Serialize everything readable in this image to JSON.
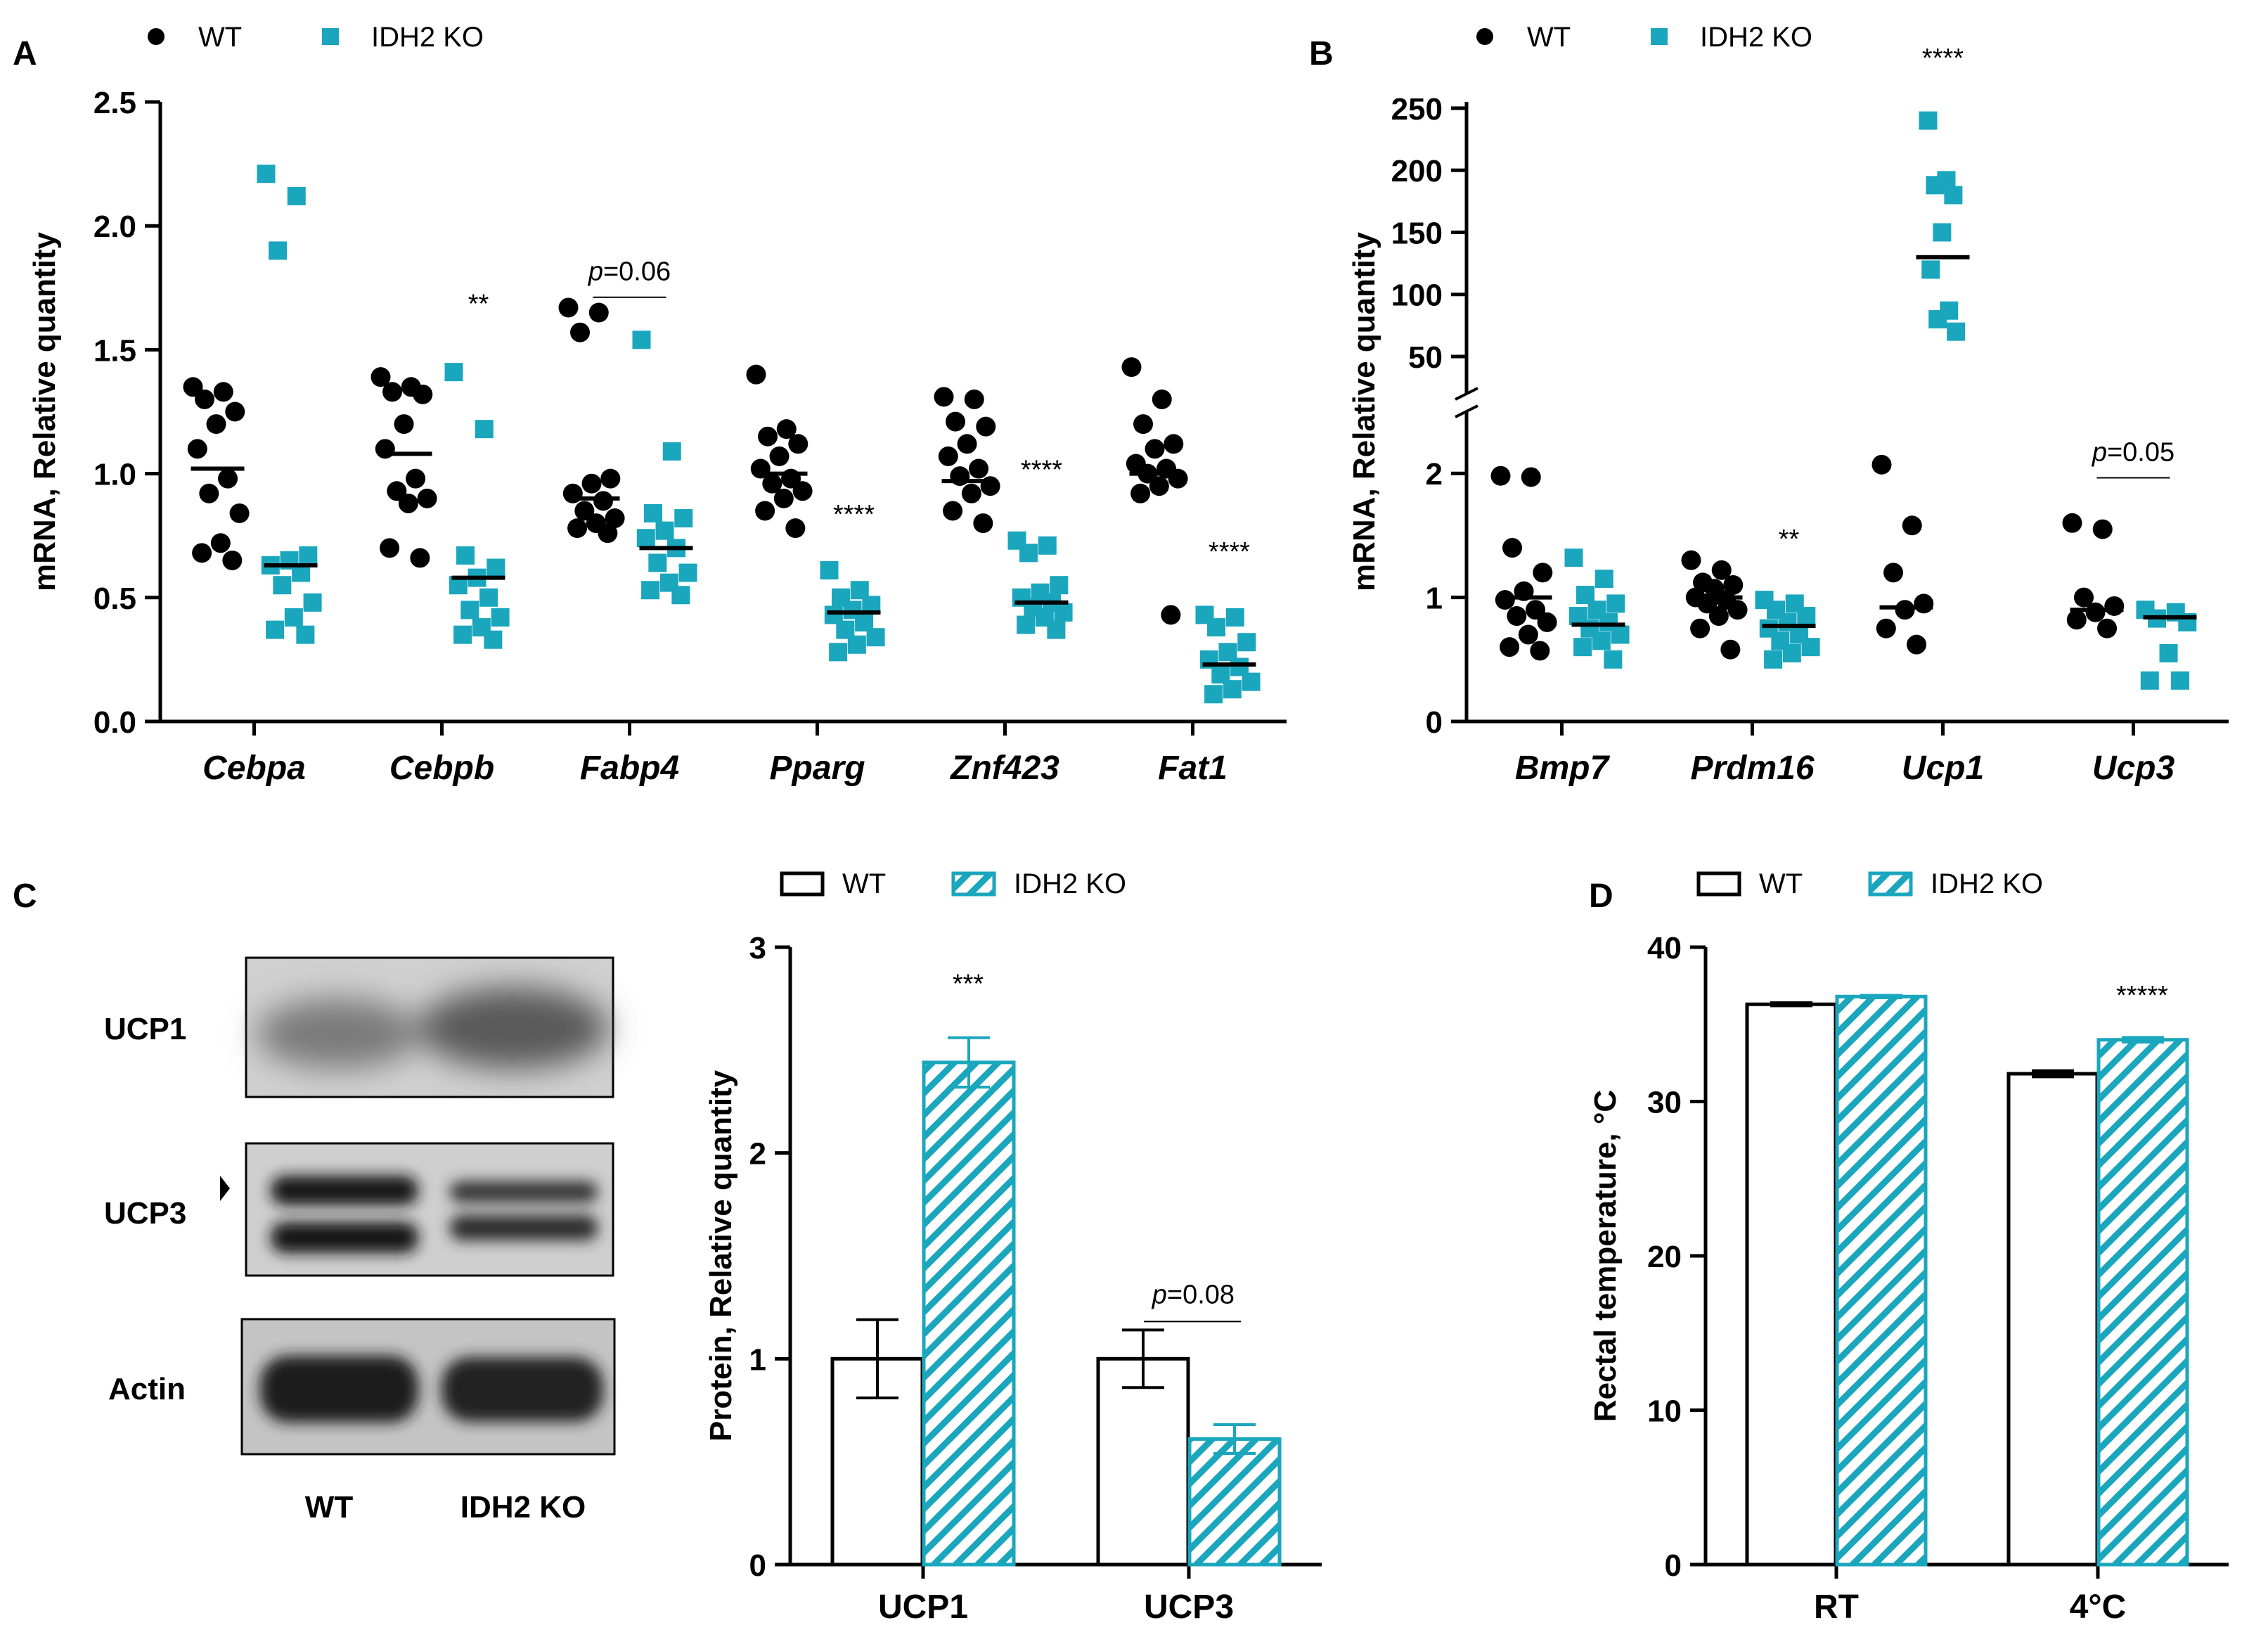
{
  "colors": {
    "wt": "#000000",
    "ko": "#1aa6bd",
    "axis": "#000000",
    "blot_bg": "#c8c8c8"
  },
  "chart_data": [
    {
      "id": "A",
      "panel_label": "A",
      "type": "scatter",
      "ylabel": "mRNA, Relative quantity",
      "ylim": [
        0,
        2.5
      ],
      "yticks": [
        "0.0",
        "0.5",
        "1.0",
        "1.5",
        "2.0",
        "2.5"
      ],
      "legend": [
        "WT",
        "IDH2 KO"
      ],
      "categories": [
        "Cebpa",
        "Cebpb",
        "Fabp4",
        "Pparg",
        "Znf423",
        "Fat1"
      ],
      "series": [
        {
          "name": "WT",
          "marker": "circle",
          "values": [
            [
              1.35,
              1.33,
              1.3,
              1.25,
              1.2,
              1.1,
              0.98,
              0.92,
              0.84,
              0.72,
              0.68,
              0.65
            ],
            [
              1.39,
              1.35,
              1.33,
              1.32,
              1.2,
              1.1,
              0.98,
              0.93,
              0.9,
              0.88,
              0.7,
              0.66
            ],
            [
              1.67,
              1.65,
              1.57,
              0.98,
              0.96,
              0.92,
              0.89,
              0.85,
              0.82,
              0.8,
              0.78,
              0.76
            ],
            [
              1.4,
              1.18,
              1.15,
              1.12,
              1.07,
              1.02,
              0.98,
              0.96,
              0.93,
              0.9,
              0.85,
              0.78
            ],
            [
              1.31,
              1.3,
              1.21,
              1.19,
              1.12,
              1.07,
              1.02,
              0.99,
              0.95,
              0.92,
              0.85,
              0.8
            ],
            [
              1.43,
              1.3,
              1.2,
              1.12,
              1.1,
              1.04,
              1.02,
              1.0,
              0.98,
              0.95,
              0.92,
              0.43
            ]
          ],
          "means": [
            1.02,
            1.08,
            0.9,
            1.0,
            0.97,
            1.0
          ]
        },
        {
          "name": "IDH2 KO",
          "marker": "square",
          "values": [
            [
              2.21,
              2.12,
              1.9,
              0.67,
              0.65,
              0.63,
              0.6,
              0.55,
              0.48,
              0.42,
              0.37,
              0.35
            ],
            [
              1.41,
              1.18,
              0.67,
              0.62,
              0.58,
              0.55,
              0.5,
              0.45,
              0.42,
              0.38,
              0.35,
              0.33
            ],
            [
              1.54,
              1.09,
              0.84,
              0.82,
              0.77,
              0.74,
              0.7,
              0.64,
              0.6,
              0.56,
              0.53,
              0.51
            ],
            [
              0.61,
              0.53,
              0.5,
              0.47,
              0.45,
              0.43,
              0.4,
              0.37,
              0.34,
              0.31,
              0.28
            ],
            [
              0.73,
              0.71,
              0.68,
              0.55,
              0.52,
              0.5,
              0.48,
              0.46,
              0.44,
              0.42,
              0.39,
              0.37
            ],
            [
              0.43,
              0.42,
              0.38,
              0.32,
              0.28,
              0.25,
              0.22,
              0.19,
              0.16,
              0.13,
              0.11
            ]
          ],
          "means": [
            0.63,
            0.58,
            0.7,
            0.44,
            0.48,
            0.23
          ]
        }
      ],
      "annotations": [
        {
          "category": "Cebpb",
          "value": 1.65,
          "text": "**"
        },
        {
          "category": "Fabp4",
          "value": 1.78,
          "text": "p=0.06",
          "bracket": true
        },
        {
          "category": "Pparg",
          "value": 0.8,
          "text": "****"
        },
        {
          "category": "Znf423",
          "value": 0.98,
          "text": "****"
        },
        {
          "category": "Fat1",
          "value": 0.65,
          "text": "****"
        }
      ]
    },
    {
      "id": "B",
      "panel_label": "B",
      "type": "scatter",
      "ylabel": "mRNA, Relative quantity",
      "broken_axis": true,
      "lower_ylim": [
        0,
        2.5
      ],
      "lower_yticks": [
        "0",
        "1",
        "2"
      ],
      "upper_ylim": [
        20,
        255
      ],
      "upper_yticks": [
        "50",
        "100",
        "150",
        "200",
        "250"
      ],
      "legend": [
        "WT",
        "IDH2 KO"
      ],
      "categories": [
        "Bmp7",
        "Prdm16",
        "Ucp1",
        "Ucp3"
      ],
      "series": [
        {
          "name": "WT",
          "marker": "circle",
          "values": [
            [
              1.98,
              1.97,
              1.4,
              1.2,
              1.05,
              0.98,
              0.9,
              0.85,
              0.8,
              0.7,
              0.6,
              0.57
            ],
            [
              1.3,
              1.22,
              1.12,
              1.1,
              1.07,
              1.0,
              0.98,
              0.95,
              0.9,
              0.85,
              0.75,
              0.58
            ],
            [
              2.07,
              1.58,
              1.2,
              0.95,
              0.9,
              0.75,
              0.62
            ],
            [
              1.6,
              1.55,
              1.0,
              0.93,
              0.88,
              0.82,
              0.75
            ]
          ],
          "means": [
            1.0,
            1.0,
            0.92,
            0.9
          ]
        },
        {
          "name": "IDH2 KO",
          "marker": "square",
          "values": [
            [
              1.32,
              1.15,
              1.02,
              0.95,
              0.9,
              0.85,
              0.8,
              0.75,
              0.7,
              0.65,
              0.6,
              0.5
            ],
            [
              0.98,
              0.95,
              0.9,
              0.85,
              0.8,
              0.75,
              0.7,
              0.65,
              0.6,
              0.55,
              0.5
            ],
            [
              240,
              192,
              188,
              180,
              150,
              120,
              87,
              80,
              70
            ],
            [
              0.9,
              0.88,
              0.83,
              0.8,
              0.55,
              0.33,
              0.33
            ]
          ],
          "means": [
            0.78,
            0.77,
            130,
            0.84
          ]
        }
      ],
      "annotations": [
        {
          "category": "Prdm16",
          "value": 1.4,
          "text": "**"
        },
        {
          "category": "Ucp1",
          "value": 270,
          "text": "****"
        },
        {
          "category": "Ucp3",
          "value": 2.1,
          "text": "p=0.05",
          "bracket": true
        }
      ]
    },
    {
      "id": "C",
      "panel_label": "C",
      "type": "bar",
      "ylabel": "Protein, Relative quantity",
      "ylim": [
        0,
        3
      ],
      "yticks": [
        "0",
        "1",
        "2",
        "3"
      ],
      "legend": [
        "WT",
        "IDH2 KO"
      ],
      "categories": [
        "UCP1",
        "UCP3"
      ],
      "series": [
        {
          "name": "WT",
          "values": [
            1.0,
            1.0
          ],
          "errors": [
            0.19,
            0.14
          ]
        },
        {
          "name": "IDH2 KO",
          "values": [
            2.44,
            0.61
          ],
          "errors": [
            0.12,
            0.07
          ]
        }
      ],
      "annotations": [
        {
          "category": "UCP1",
          "value": 2.78,
          "text": "***"
        },
        {
          "category": "UCP3",
          "value": 1.27,
          "text": "p=0.08",
          "bracket": true
        }
      ],
      "blot": {
        "bands": [
          "UCP1",
          "UCP3",
          "Actin"
        ],
        "lanes": [
          "WT",
          "IDH2 KO"
        ]
      }
    },
    {
      "id": "D",
      "panel_label": "D",
      "type": "bar",
      "ylabel": "Rectal temperature, °C",
      "ylim": [
        0,
        40
      ],
      "yticks": [
        "0",
        "10",
        "20",
        "30",
        "40"
      ],
      "legend": [
        "WT",
        "IDH2 KO"
      ],
      "categories": [
        "RT",
        "4°C"
      ],
      "series": [
        {
          "name": "WT",
          "values": [
            36.3,
            31.8
          ],
          "errors": [
            0.1,
            0.2
          ]
        },
        {
          "name": "IDH2 KO",
          "values": [
            36.8,
            34.0
          ],
          "errors": [
            0.08,
            0.15
          ]
        }
      ],
      "annotations": [
        {
          "category": "4°C",
          "value": 36.3,
          "text": "*****"
        }
      ]
    }
  ]
}
